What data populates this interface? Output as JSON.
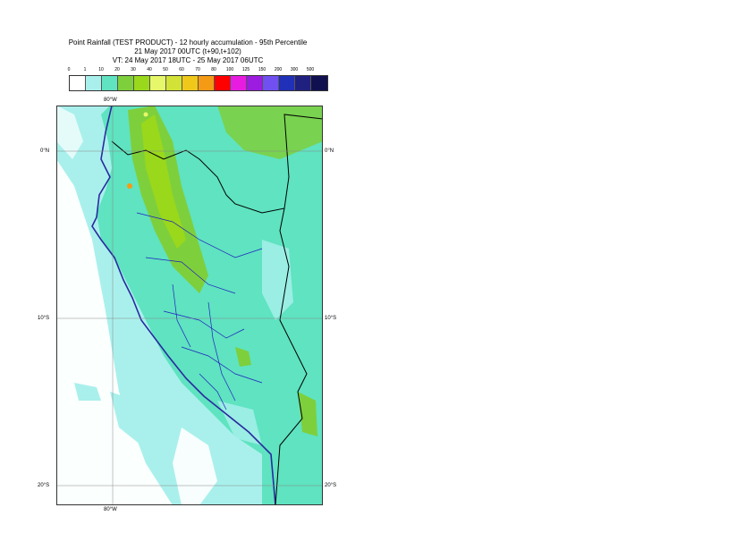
{
  "title": {
    "line1": "Point Rainfall (TEST PRODUCT) - 12 hourly accumulation - 95th Percentile",
    "line2": "21 May 2017 00UTC (t+90,t+102)",
    "line3": "VT: 24 May 2017 18UTC - 25 May 2017 06UTC"
  },
  "legend": {
    "ticks": [
      "0",
      "1",
      "10",
      "20",
      "30",
      "40",
      "50",
      "60",
      "70",
      "80",
      "100",
      "125",
      "150",
      "200",
      "300",
      "500"
    ],
    "colors": [
      "#ffffff",
      "#a9f0ec",
      "#5fe3c0",
      "#7ecf3c",
      "#9ad81c",
      "#e6f86a",
      "#d2e236",
      "#f0c81a",
      "#f59a14",
      "#ff0000",
      "#e81ce0",
      "#9c1ce0",
      "#7050f0",
      "#2030b8",
      "#202080",
      "#101050"
    ]
  },
  "map": {
    "ocean_color": "#a9f0ec",
    "land_color": "#5fe3c0",
    "heavy_color": "#9ad81c",
    "longitude_labels": {
      "top": "80°W",
      "bottom": "80°W"
    },
    "latitude_labels": [
      "0°N",
      "10°S",
      "20°S"
    ]
  }
}
